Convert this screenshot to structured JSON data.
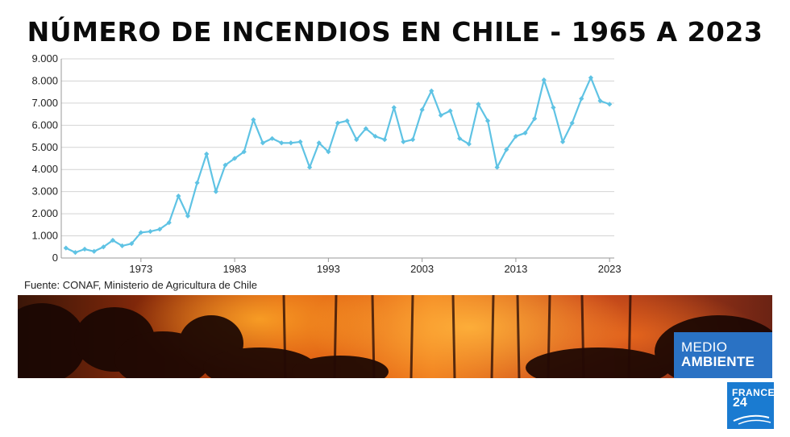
{
  "chart_data": {
    "type": "line",
    "title": "NÚMERO DE INCENDIOS EN CHILE - 1965 A 2023",
    "xlabel": "",
    "ylabel": "",
    "x_ticks": [
      "1973",
      "1983",
      "1993",
      "2003",
      "2013",
      "2023"
    ],
    "y_ticks": [
      "0",
      "1.000",
      "2.000",
      "3.000",
      "4.000",
      "5.000",
      "6.000",
      "7.000",
      "8.000",
      "9.000"
    ],
    "ylim": [
      0,
      9000
    ],
    "xlim": [
      1964.5,
      2023.5
    ],
    "grid": "horizontal",
    "series_color": "#5fc3e4",
    "x": [
      1965,
      1966,
      1967,
      1968,
      1969,
      1970,
      1971,
      1972,
      1973,
      1974,
      1975,
      1976,
      1977,
      1978,
      1979,
      1980,
      1981,
      1982,
      1983,
      1984,
      1985,
      1986,
      1987,
      1988,
      1989,
      1990,
      1991,
      1992,
      1993,
      1994,
      1995,
      1996,
      1997,
      1998,
      1999,
      2000,
      2001,
      2002,
      2003,
      2004,
      2005,
      2006,
      2007,
      2008,
      2009,
      2010,
      2011,
      2012,
      2013,
      2014,
      2015,
      2016,
      2017,
      2018,
      2019,
      2020,
      2021,
      2022,
      2023
    ],
    "values": [
      450,
      250,
      400,
      300,
      500,
      800,
      550,
      650,
      1150,
      1200,
      1300,
      1600,
      2800,
      1900,
      3400,
      4700,
      3000,
      4200,
      4500,
      4800,
      6250,
      5200,
      5400,
      5200,
      5200,
      5250,
      4100,
      5200,
      4800,
      6100,
      6200,
      5350,
      5850,
      5500,
      5350,
      6800,
      5250,
      5350,
      6700,
      7550,
      6450,
      6650,
      5400,
      5150,
      6950,
      6200,
      4100,
      4900,
      5500,
      5650,
      6300,
      8050,
      6800,
      5250,
      6100,
      7200,
      8150,
      7100,
      6950
    ]
  },
  "source": "Fuente: CONAF, Ministerio de Agricultura de Chile",
  "badge": {
    "line1": "MEDIO",
    "line2": "AMBIENTE",
    "color": "#2a72c4"
  },
  "logo": {
    "line1": "FRANCE",
    "line2": "24",
    "color": "#1a7bd1"
  }
}
